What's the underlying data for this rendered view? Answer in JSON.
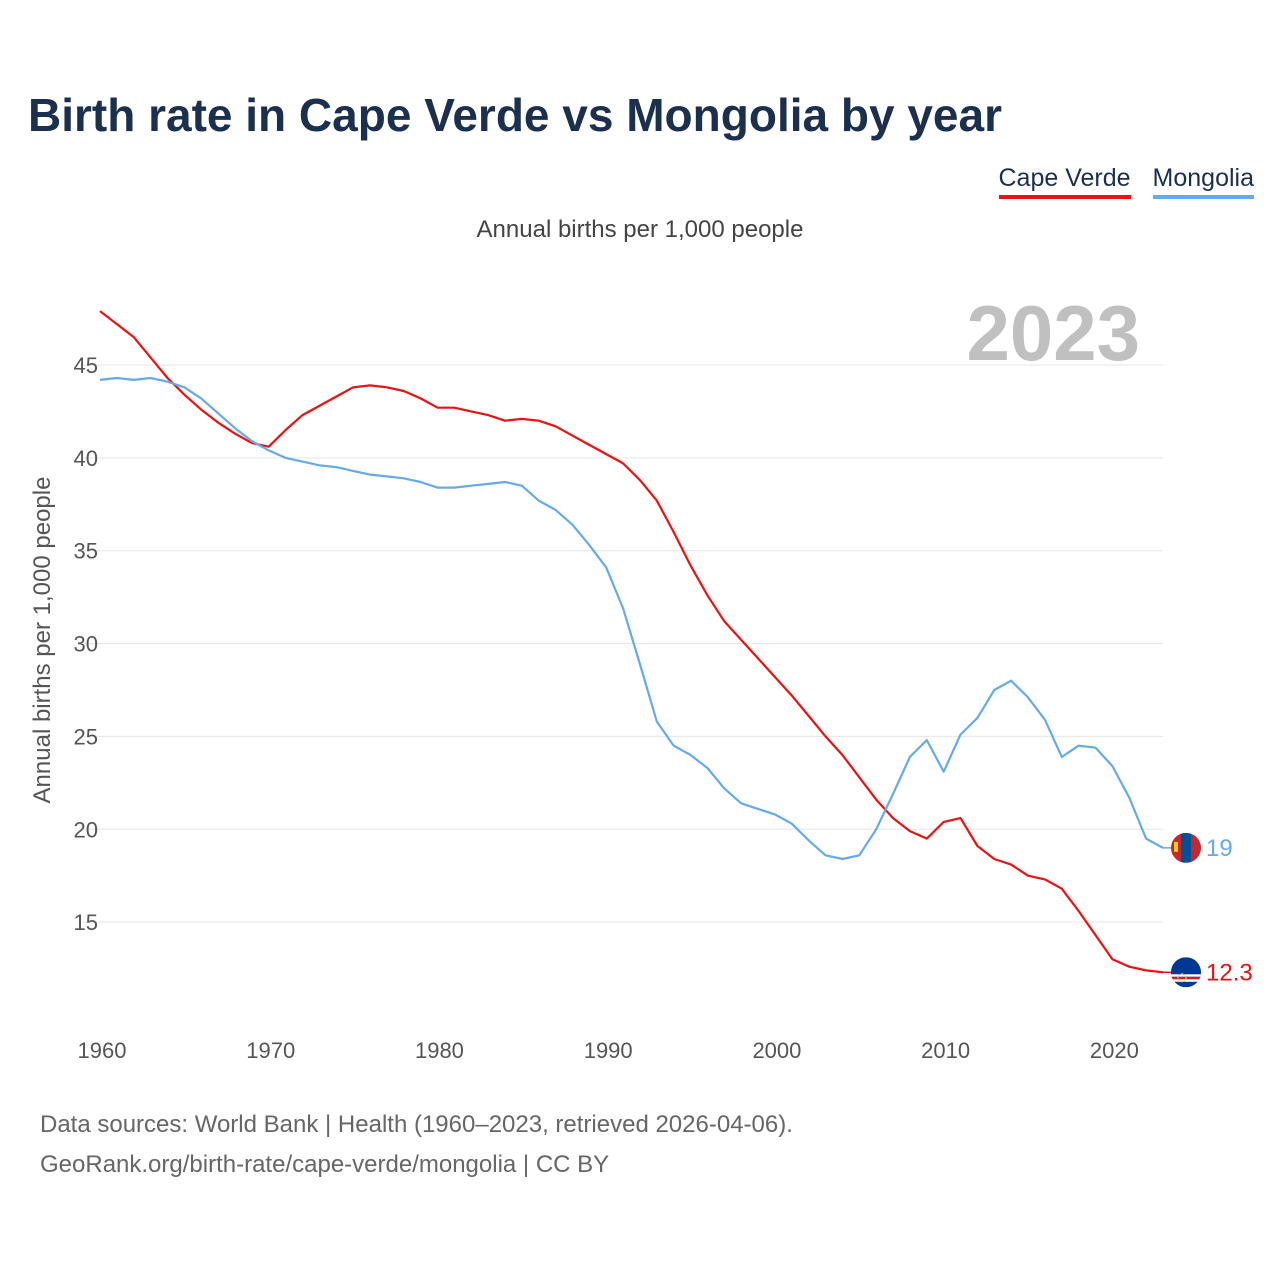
{
  "chart_data": {
    "type": "line",
    "title": "Birth rate in Cape Verde vs Mongolia by year",
    "subtitle": "Annual births per 1,000 people",
    "ylabel": "Annual births per 1,000 people",
    "xlabel": "",
    "year_label": "2023",
    "xlim": [
      1960,
      2023
    ],
    "ylim": [
      10,
      48.5
    ],
    "yticks": [
      15,
      20,
      25,
      30,
      35,
      40,
      45
    ],
    "xticks": [
      1960,
      1970,
      1980,
      1990,
      2000,
      2010,
      2020
    ],
    "legend_position": "top-right",
    "grid": true,
    "x": [
      1960,
      1961,
      1962,
      1963,
      1964,
      1965,
      1966,
      1967,
      1968,
      1969,
      1970,
      1971,
      1972,
      1973,
      1974,
      1975,
      1976,
      1977,
      1978,
      1979,
      1980,
      1981,
      1982,
      1983,
      1984,
      1985,
      1986,
      1987,
      1988,
      1989,
      1990,
      1991,
      1992,
      1993,
      1994,
      1995,
      1996,
      1997,
      1998,
      1999,
      2000,
      2001,
      2002,
      2003,
      2004,
      2005,
      2006,
      2007,
      2008,
      2009,
      2010,
      2011,
      2012,
      2013,
      2014,
      2015,
      2016,
      2017,
      2018,
      2019,
      2020,
      2021,
      2022,
      2023
    ],
    "series": [
      {
        "name": "Cape Verde",
        "color": "#ee1111",
        "end_label": "12.3",
        "flag": "cape-verde-flag-icon",
        "values": [
          47.9,
          47.2,
          46.5,
          45.4,
          44.3,
          43.4,
          42.6,
          41.9,
          41.3,
          40.8,
          40.6,
          41.5,
          42.3,
          42.8,
          43.3,
          43.8,
          43.9,
          43.8,
          43.6,
          43.2,
          42.7,
          42.7,
          42.5,
          42.3,
          42.0,
          42.1,
          42.0,
          41.7,
          41.2,
          40.7,
          40.2,
          39.7,
          38.8,
          37.7,
          36.0,
          34.2,
          32.6,
          31.2,
          30.2,
          29.2,
          28.2,
          27.2,
          26.1,
          25.0,
          24.0,
          22.8,
          21.6,
          20.6,
          19.9,
          19.5,
          20.4,
          20.6,
          19.1,
          18.4,
          18.1,
          17.5,
          17.3,
          16.8,
          15.6,
          14.3,
          13.0,
          12.6,
          12.4,
          12.3
        ]
      },
      {
        "name": "Mongolia",
        "color": "#66aaee",
        "end_label": "19",
        "flag": "mongolia-flag-icon",
        "values": [
          44.2,
          44.3,
          44.2,
          44.3,
          44.1,
          43.8,
          43.2,
          42.4,
          41.6,
          40.9,
          40.4,
          40.0,
          39.8,
          39.6,
          39.5,
          39.3,
          39.1,
          39.0,
          38.9,
          38.7,
          38.4,
          38.4,
          38.5,
          38.6,
          38.7,
          38.5,
          37.7,
          37.2,
          36.4,
          35.3,
          34.1,
          31.9,
          28.9,
          25.8,
          24.5,
          24.0,
          23.3,
          22.2,
          21.4,
          21.1,
          20.8,
          20.3,
          19.4,
          18.6,
          18.4,
          18.6,
          20.0,
          21.9,
          23.9,
          24.8,
          23.1,
          25.1,
          26.0,
          27.5,
          28.0,
          27.1,
          25.9,
          23.9,
          24.5,
          24.4,
          23.4,
          21.7,
          19.5,
          19.0
        ]
      }
    ]
  },
  "footer": {
    "line1": "Data sources: World Bank | Health (1960–2023, retrieved 2026-04-06).",
    "line2": "GeoRank.org/birth-rate/cape-verde/mongolia | CC BY"
  }
}
